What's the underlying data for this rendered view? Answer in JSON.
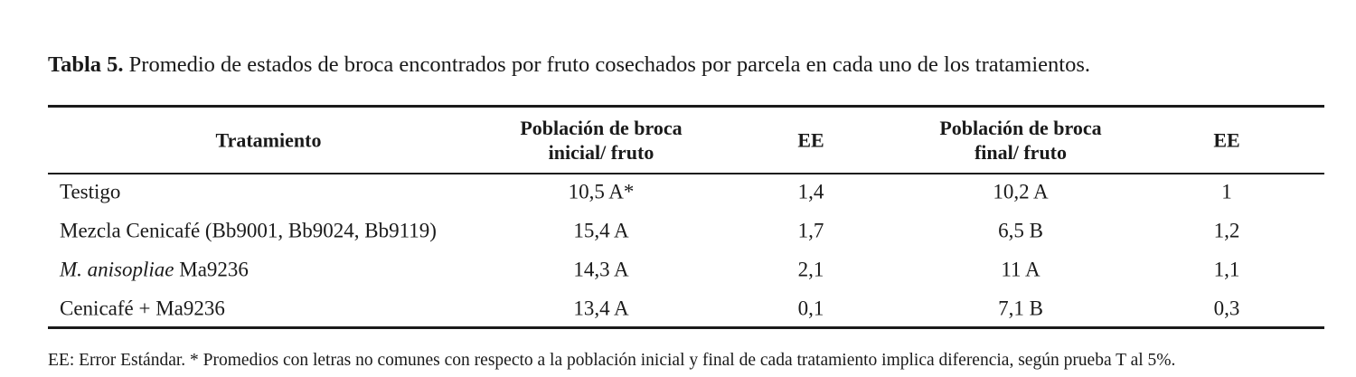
{
  "caption": {
    "label": "Tabla 5.",
    "text": "Promedio de estados de broca encontrados por fruto cosechados por parcela en cada uno de los tratamientos."
  },
  "table": {
    "headers": [
      [
        "Tratamiento"
      ],
      [
        "Población de broca",
        "inicial/ fruto"
      ],
      [
        "EE"
      ],
      [
        "Población de broca",
        "final/ fruto"
      ],
      [
        "EE"
      ]
    ],
    "rows": [
      [
        [
          "Testigo"
        ],
        "10,5 A*",
        "1,4",
        "10,2 A",
        "1"
      ],
      [
        [
          "Mezcla Cenicafé (Bb9001, Bb9024, Bb9119)"
        ],
        "15,4 A",
        "1,7",
        "6,5 B",
        "1,2"
      ],
      [
        [
          {
            "italic": "M. anisopliae"
          },
          " Ma9236"
        ],
        "14,3 A",
        "2,1",
        "11 A",
        "1,1"
      ],
      [
        [
          "Cenicafé + Ma9236"
        ],
        "13,4 A",
        "0,1",
        "7,1 B",
        "0,3"
      ]
    ]
  },
  "footnote": "EE: Error Estándar. * Promedios con letras no comunes con respecto a la población inicial y final de cada tratamiento implica diferencia, según prueba T al 5%."
}
